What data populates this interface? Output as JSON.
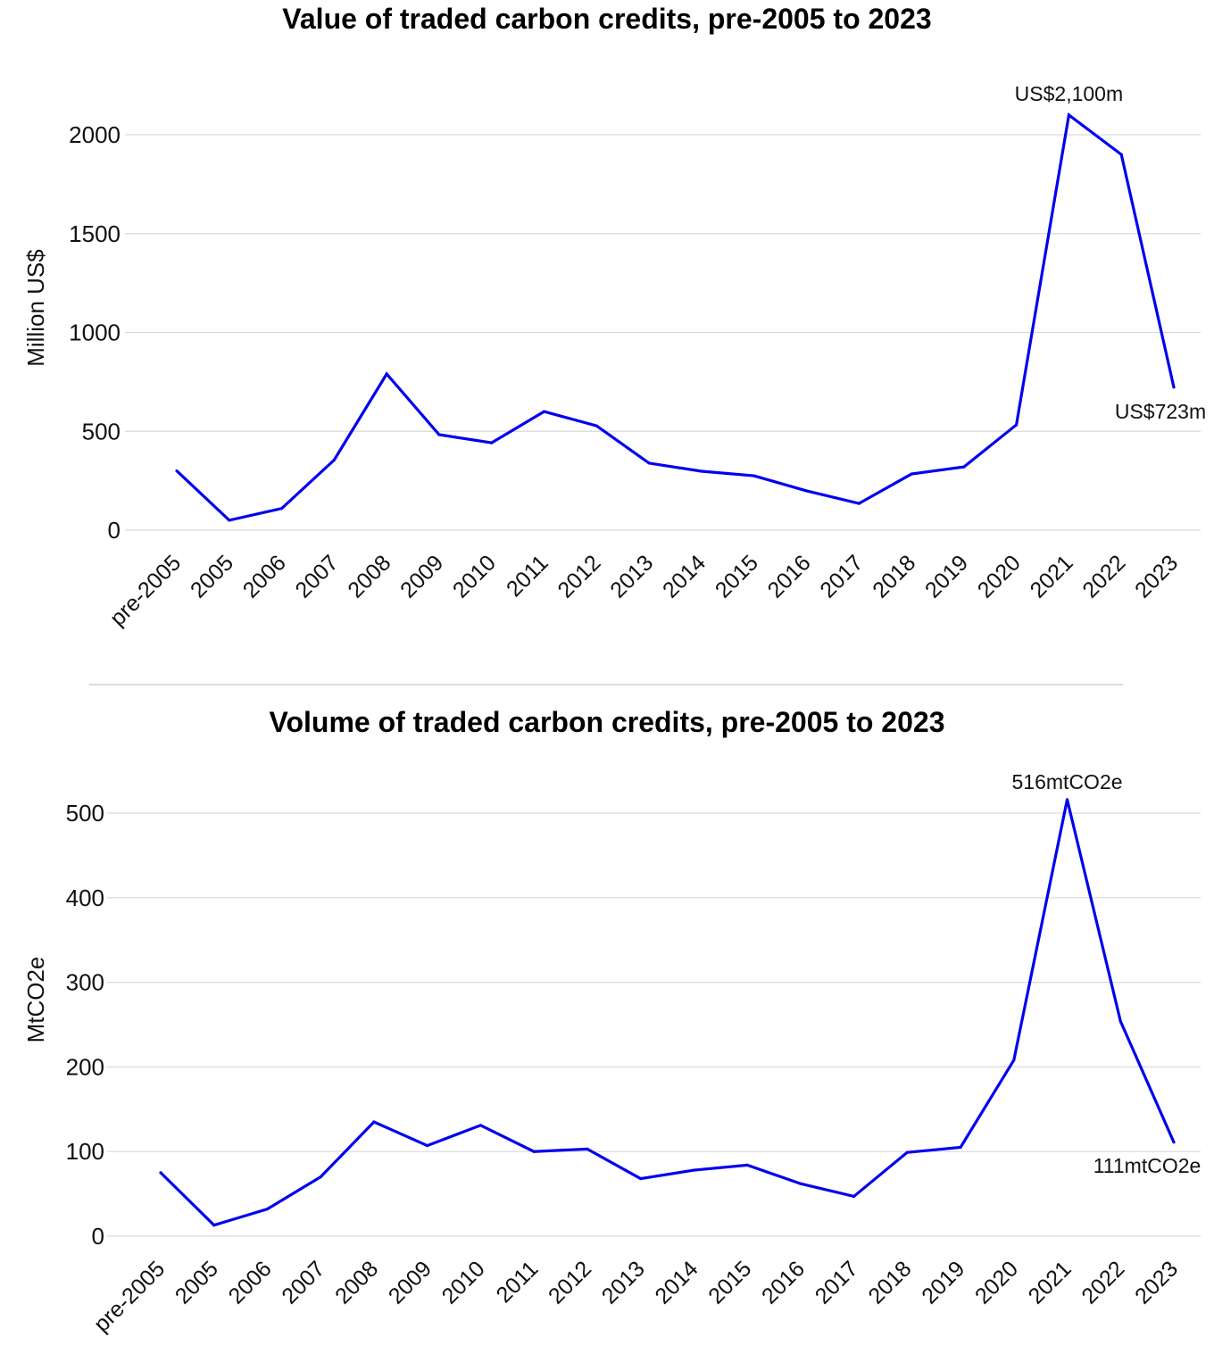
{
  "chart_data": [
    {
      "type": "line",
      "title": "Value of traded carbon credits, pre-2005 to 2023",
      "xlabel": "",
      "ylabel": "Million US$",
      "ylim": [
        0,
        2000
      ],
      "yticks": [
        0,
        500,
        1000,
        1500,
        2000
      ],
      "grid": true,
      "color": "#0000EE",
      "categories": [
        "pre-2005",
        "2005",
        "2006",
        "2007",
        "2008",
        "2009",
        "2010",
        "2011",
        "2012",
        "2013",
        "2014",
        "2015",
        "2016",
        "2017",
        "2018",
        "2019",
        "2020",
        "2021",
        "2022",
        "2023"
      ],
      "values": [
        300,
        50,
        110,
        355,
        790,
        483,
        442,
        600,
        528,
        339,
        298,
        275,
        199,
        135,
        284,
        320,
        533,
        2100,
        1900,
        723
      ],
      "annotations": [
        {
          "category": "2021",
          "text": "US$2,100m"
        },
        {
          "category": "2023",
          "text": "US$723m"
        }
      ]
    },
    {
      "type": "line",
      "title": "Volume of traded carbon credits, pre-2005 to 2023",
      "xlabel": "",
      "ylabel": "MtCO2e",
      "ylim": [
        0,
        500
      ],
      "yticks": [
        0,
        100,
        200,
        300,
        400,
        500
      ],
      "grid": true,
      "color": "#0000EE",
      "categories": [
        "pre-2005",
        "2005",
        "2006",
        "2007",
        "2008",
        "2009",
        "2010",
        "2011",
        "2012",
        "2013",
        "2014",
        "2015",
        "2016",
        "2017",
        "2018",
        "2019",
        "2020",
        "2021",
        "2022",
        "2023"
      ],
      "values": [
        75,
        13,
        32,
        70,
        135,
        107,
        131,
        100,
        103,
        68,
        78,
        84,
        62,
        47,
        99,
        105,
        208,
        516,
        254,
        111
      ],
      "annotations": [
        {
          "category": "2021",
          "text": "516mtCO2e"
        },
        {
          "category": "2023",
          "text": "111mtCO2e"
        }
      ]
    }
  ]
}
